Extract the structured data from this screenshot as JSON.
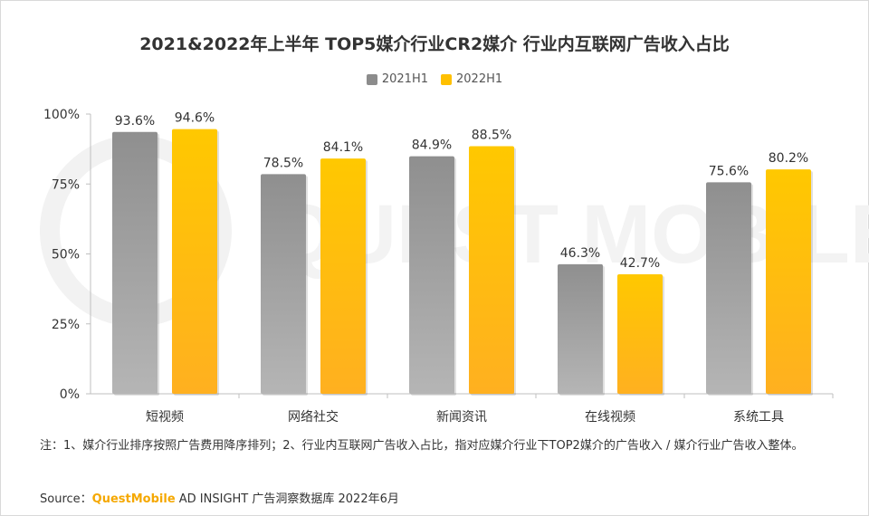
{
  "title": "2021&2022年上半年 TOP5媒介行业CR2媒介 行业内互联网广告收入占比",
  "chart_data": {
    "type": "bar",
    "categories": [
      "短视频",
      "网络社交",
      "新闻资讯",
      "在线视频",
      "系统工具"
    ],
    "series": [
      {
        "name": "2021H1",
        "color": "#8c8c8c",
        "values": [
          93.6,
          78.5,
          84.9,
          46.3,
          75.6
        ],
        "labels": [
          "93.6%",
          "78.5%",
          "84.9%",
          "46.3%",
          "75.6%"
        ]
      },
      {
        "name": "2022H1",
        "color": "#ffc000",
        "values": [
          94.6,
          84.1,
          88.5,
          42.7,
          80.2
        ],
        "labels": [
          "94.6%",
          "84.1%",
          "88.5%",
          "42.7%",
          "80.2%"
        ]
      }
    ],
    "ylim": [
      0,
      100
    ],
    "yticks": [
      0,
      25,
      50,
      75,
      100
    ],
    "ytick_labels": [
      "0%",
      "25%",
      "50%",
      "75%",
      "100%"
    ],
    "legend_position": "top-center",
    "grid": false
  },
  "watermark": "QUEST MOBILE",
  "note": "注：1、媒介行业排序按照广告费用降序排列；2、行业内互联网广告收入占比，指对应媒介行业下TOP2媒介的广告收入 / 媒介行业广告收入整体。",
  "source": {
    "prefix": "Source：",
    "brand": "QuestMobile",
    "text": " AD INSIGHT 广告洞察数据库 2022年6月"
  }
}
